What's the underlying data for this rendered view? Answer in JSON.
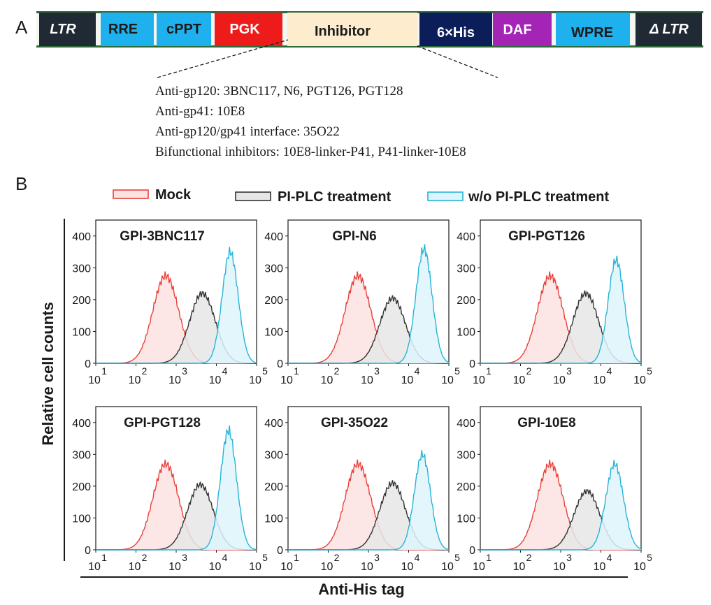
{
  "panel_a": {
    "label": "A",
    "segments": [
      {
        "text": "LTR",
        "fill": "#1f2a35",
        "color": "#ffffff",
        "italic": true
      },
      {
        "text": "RRE",
        "fill": "#1fb0ee",
        "color": "#1a1a1a"
      },
      {
        "text": "cPPT",
        "fill": "#1fb0ee",
        "color": "#1a1a1a"
      },
      {
        "text": "PGK",
        "fill": "#ee1b1b",
        "color": "#ffffff"
      },
      {
        "text": "Inhibitor",
        "fill": "#fdeccd",
        "color": "#1a1a1a"
      },
      {
        "text": "6×His",
        "fill": "#0c1e5a",
        "color": "#ffffff"
      },
      {
        "text": "DAF",
        "fill": "#a424b6",
        "color": "#ffffff"
      },
      {
        "text": "WPRE",
        "fill": "#1fb0ee",
        "color": "#1a1a1a"
      },
      {
        "text": "Δ LTR",
        "fill": "#1f2a35",
        "color": "#ffffff",
        "italic": true
      }
    ],
    "inhibitor_list": [
      "Anti-gp120: 3BNC117, N6, PGT126, PGT128",
      "Anti-gp41: 10E8",
      "Anti-gp120/gp41 interface: 35O22",
      "Bifunctional inhibitors: 10E8-linker-P41, P41-linker-10E8"
    ]
  },
  "panel_b": {
    "label": "B",
    "ylabel": "Relative cell counts",
    "xlabel": "Anti-His tag",
    "legend": [
      {
        "name": "Mock",
        "color": "#e8413c",
        "fill": "#fce3e2"
      },
      {
        "name": "PI-PLC treatment",
        "color": "#333333",
        "fill": "#e6e6e6"
      },
      {
        "name": "w/o PI-PLC treatment",
        "color": "#27b4d8",
        "fill": "#def4fb"
      }
    ]
  },
  "chart_data": [
    {
      "type": "area",
      "title": "GPI-3BNC117",
      "x_scale": "log",
      "xlim": [
        10,
        100000
      ],
      "ylim": [
        0,
        450
      ],
      "yticks": [
        "0",
        "100",
        "200",
        "300",
        "400"
      ],
      "xtick_exponents": [
        "1",
        "2",
        "3",
        "4",
        "5"
      ],
      "series": [
        {
          "name": "Mock",
          "peak_x": 550,
          "peak_y": 275,
          "width_log": 0.32
        },
        {
          "name": "PI-PLC treatment",
          "peak_x": 4500,
          "peak_y": 220,
          "width_log": 0.32
        },
        {
          "name": "w/o PI-PLC treatment",
          "peak_x": 22000,
          "peak_y": 350,
          "width_log": 0.2
        }
      ]
    },
    {
      "type": "area",
      "title": "GPI-N6",
      "x_scale": "log",
      "xlim": [
        10,
        100000
      ],
      "ylim": [
        0,
        450
      ],
      "yticks": [
        "0",
        "100",
        "200",
        "300",
        "400"
      ],
      "xtick_exponents": [
        "1",
        "2",
        "3",
        "4",
        "5"
      ],
      "series": [
        {
          "name": "Mock",
          "peak_x": 550,
          "peak_y": 275,
          "width_log": 0.32
        },
        {
          "name": "PI-PLC treatment",
          "peak_x": 4000,
          "peak_y": 205,
          "width_log": 0.32
        },
        {
          "name": "w/o PI-PLC treatment",
          "peak_x": 24000,
          "peak_y": 360,
          "width_log": 0.2
        }
      ]
    },
    {
      "type": "area",
      "title": "GPI-PGT126",
      "x_scale": "log",
      "xlim": [
        10,
        100000
      ],
      "ylim": [
        0,
        450
      ],
      "yticks": [
        "0",
        "100",
        "200",
        "300",
        "400"
      ],
      "xtick_exponents": [
        "1",
        "2",
        "3",
        "4",
        "5"
      ],
      "series": [
        {
          "name": "Mock",
          "peak_x": 550,
          "peak_y": 275,
          "width_log": 0.32
        },
        {
          "name": "PI-PLC treatment",
          "peak_x": 4200,
          "peak_y": 220,
          "width_log": 0.32
        },
        {
          "name": "w/o PI-PLC treatment",
          "peak_x": 24000,
          "peak_y": 325,
          "width_log": 0.2
        }
      ]
    },
    {
      "type": "area",
      "title": "GPI-PGT128",
      "x_scale": "log",
      "xlim": [
        10,
        100000
      ],
      "ylim": [
        0,
        450
      ],
      "yticks": [
        "0",
        "100",
        "200",
        "300",
        "400"
      ],
      "xtick_exponents": [
        "1",
        "2",
        "3",
        "4",
        "5"
      ],
      "series": [
        {
          "name": "Mock",
          "peak_x": 550,
          "peak_y": 270,
          "width_log": 0.32
        },
        {
          "name": "PI-PLC treatment",
          "peak_x": 4000,
          "peak_y": 205,
          "width_log": 0.32
        },
        {
          "name": "w/o PI-PLC treatment",
          "peak_x": 20000,
          "peak_y": 375,
          "width_log": 0.2
        }
      ]
    },
    {
      "type": "area",
      "title": "GPI-35O22",
      "x_scale": "log",
      "xlim": [
        10,
        100000
      ],
      "ylim": [
        0,
        450
      ],
      "yticks": [
        "0",
        "100",
        "200",
        "300",
        "400"
      ],
      "xtick_exponents": [
        "1",
        "2",
        "3",
        "4",
        "5"
      ],
      "series": [
        {
          "name": "Mock",
          "peak_x": 550,
          "peak_y": 270,
          "width_log": 0.32
        },
        {
          "name": "PI-PLC treatment",
          "peak_x": 4000,
          "peak_y": 210,
          "width_log": 0.32
        },
        {
          "name": "w/o PI-PLC treatment",
          "peak_x": 22000,
          "peak_y": 300,
          "width_log": 0.2
        }
      ]
    },
    {
      "type": "area",
      "title": "GPI-10E8",
      "x_scale": "log",
      "xlim": [
        10,
        100000
      ],
      "ylim": [
        0,
        450
      ],
      "yticks": [
        "0",
        "100",
        "200",
        "300",
        "400"
      ],
      "xtick_exponents": [
        "1",
        "2",
        "3",
        "4",
        "5"
      ],
      "series": [
        {
          "name": "Mock",
          "peak_x": 550,
          "peak_y": 270,
          "width_log": 0.32
        },
        {
          "name": "PI-PLC treatment",
          "peak_x": 4500,
          "peak_y": 185,
          "width_log": 0.32
        },
        {
          "name": "w/o PI-PLC treatment",
          "peak_x": 22000,
          "peak_y": 270,
          "width_log": 0.22
        }
      ]
    }
  ]
}
